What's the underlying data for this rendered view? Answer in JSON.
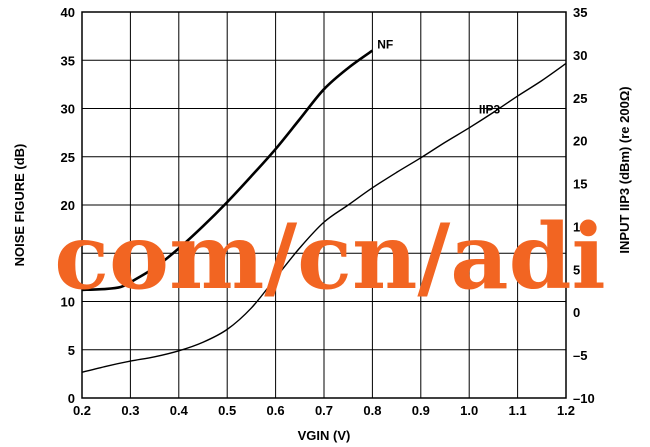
{
  "chart_data": {
    "type": "line",
    "xlabel": "VGIN (V)",
    "ylabel_left": "NOISE FIGURE (dB)",
    "ylabel_right": "INPUT IIP3 (dBm) (re 200Ω)",
    "xlim": [
      0.2,
      1.2
    ],
    "ylim_left": [
      0,
      40
    ],
    "ylim_right": [
      -10,
      35
    ],
    "x_ticks": [
      0.2,
      0.3,
      0.4,
      0.5,
      0.6,
      0.7,
      0.8,
      0.9,
      1.0,
      1.1,
      1.2
    ],
    "x_tick_labels": [
      "0.2",
      "0.3",
      "0.4",
      "0.5",
      "0.6",
      "0.7",
      "0.8",
      "0.9",
      "1.0",
      "1.1",
      "1.2"
    ],
    "y_left_ticks": [
      0,
      5,
      10,
      15,
      20,
      25,
      30,
      35,
      40
    ],
    "y_left_tick_labels": [
      "0",
      "5",
      "10",
      "15",
      "20",
      "25",
      "30",
      "35",
      "40"
    ],
    "y_right_ticks": [
      -10,
      -5,
      0,
      5,
      10,
      15,
      20,
      25,
      30,
      35
    ],
    "y_right_tick_labels": [
      "–10",
      "–5",
      "0",
      "5",
      "10",
      "15",
      "20",
      "25",
      "30",
      "35"
    ],
    "grid": true,
    "series": [
      {
        "name": "NF",
        "axis": "left",
        "color": "#000000",
        "x": [
          0.2,
          0.25,
          0.28,
          0.3,
          0.35,
          0.4,
          0.45,
          0.5,
          0.55,
          0.6,
          0.65,
          0.7,
          0.75,
          0.8
        ],
        "y": [
          11.2,
          11.3,
          11.5,
          12.0,
          13.5,
          15.5,
          17.8,
          20.3,
          23.0,
          25.8,
          28.9,
          32.0,
          34.2,
          36.0
        ]
      },
      {
        "name": "IIP3",
        "axis": "right",
        "color": "#000000",
        "x": [
          0.2,
          0.25,
          0.3,
          0.35,
          0.4,
          0.45,
          0.5,
          0.55,
          0.6,
          0.65,
          0.7,
          0.75,
          0.8,
          0.85,
          0.9,
          0.95,
          1.0,
          1.05,
          1.1,
          1.15,
          1.2
        ],
        "y": [
          -7.0,
          -6.3,
          -5.7,
          -5.2,
          -4.5,
          -3.5,
          -2.0,
          0.5,
          4.0,
          7.5,
          10.5,
          12.5,
          14.5,
          16.3,
          18.0,
          19.8,
          21.5,
          23.3,
          25.2,
          27.0,
          29.0
        ]
      }
    ],
    "annotations": [
      {
        "text": "NF",
        "x": 0.81,
        "y_left": 36.2
      },
      {
        "text": "IIP3",
        "x": 1.02,
        "y_left": 29.5
      }
    ]
  },
  "watermark": {
    "text": "com/cn/adi",
    "color": "#f26522"
  }
}
